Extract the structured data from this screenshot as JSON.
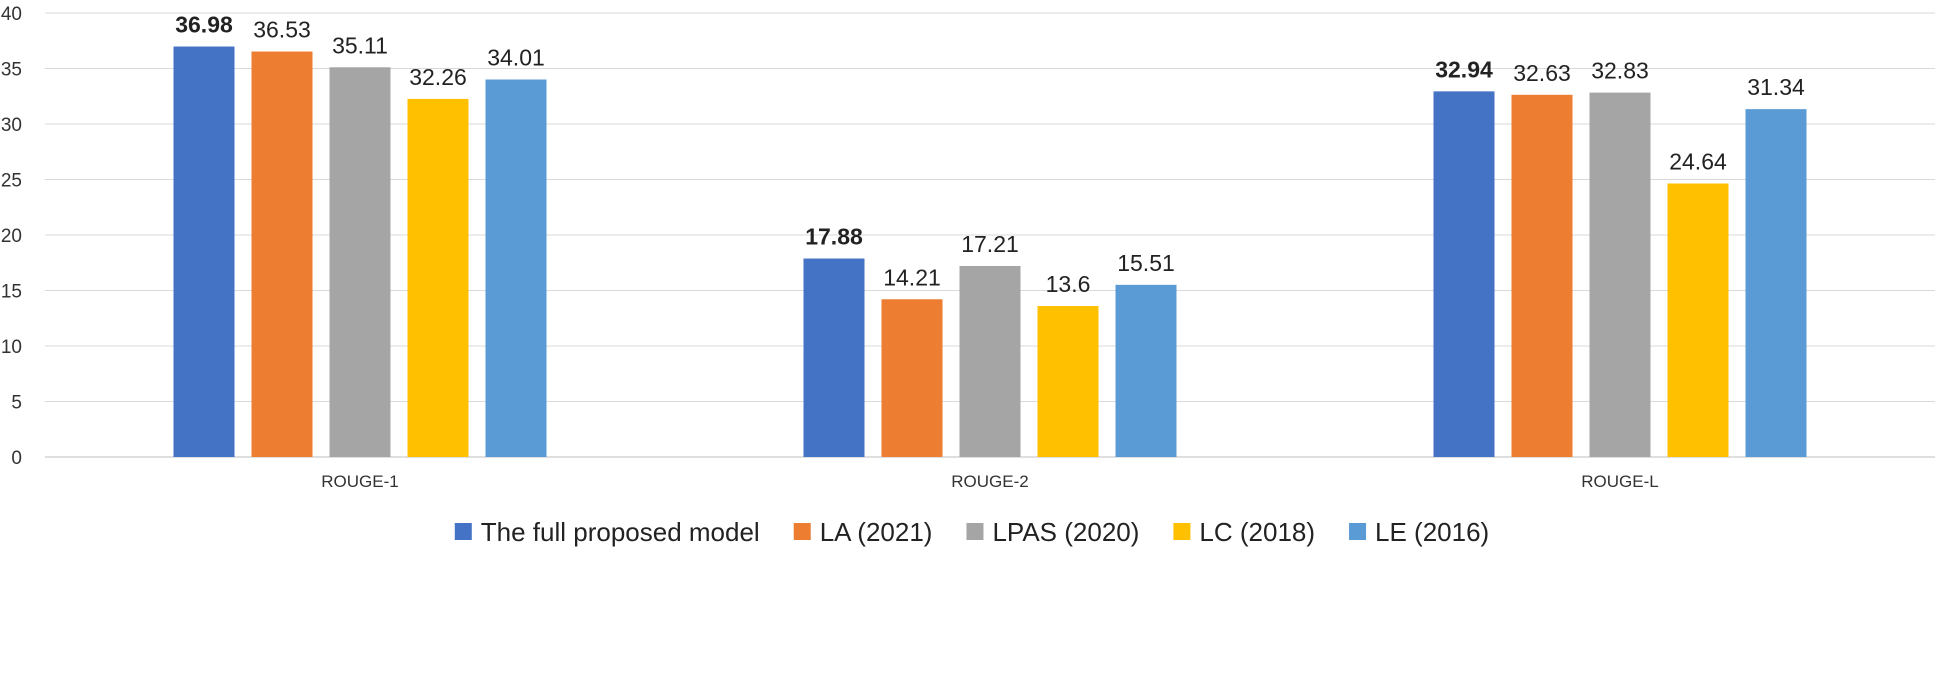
{
  "chart_data": {
    "type": "bar",
    "title": "",
    "xlabel": "",
    "ylabel": "",
    "ylim": [
      0,
      40
    ],
    "yticks": [
      0,
      5,
      10,
      15,
      20,
      25,
      30,
      35,
      40
    ],
    "grid": true,
    "legend_position": "bottom",
    "categories": [
      "ROUGE-1",
      "ROUGE-2",
      "ROUGE-L"
    ],
    "series": [
      {
        "name": "The full proposed model",
        "color": "#4472C4",
        "values": [
          36.98,
          17.88,
          32.94
        ],
        "labels": [
          "36.98",
          "17.88",
          "32.94"
        ],
        "bold_labels": true
      },
      {
        "name": "LA (2021)",
        "color": "#ED7D31",
        "values": [
          36.53,
          14.21,
          32.63
        ],
        "labels": [
          "36.53",
          "14.21",
          "32.63"
        ],
        "bold_labels": false
      },
      {
        "name": "LPAS (2020)",
        "color": "#A5A5A5",
        "values": [
          35.11,
          17.21,
          32.83
        ],
        "labels": [
          "35.11",
          "17.21",
          "32.83"
        ],
        "bold_labels": false
      },
      {
        "name": "LC (2018)",
        "color": "#FFC000",
        "values": [
          32.26,
          13.6,
          24.64
        ],
        "labels": [
          "32.26",
          "13.6",
          "24.64"
        ],
        "bold_labels": false
      },
      {
        "name": "LE (2016)",
        "color": "#5B9BD5",
        "values": [
          34.01,
          15.51,
          31.34
        ],
        "labels": [
          "34.01",
          "15.51",
          "31.34"
        ],
        "bold_labels": false
      }
    ]
  }
}
